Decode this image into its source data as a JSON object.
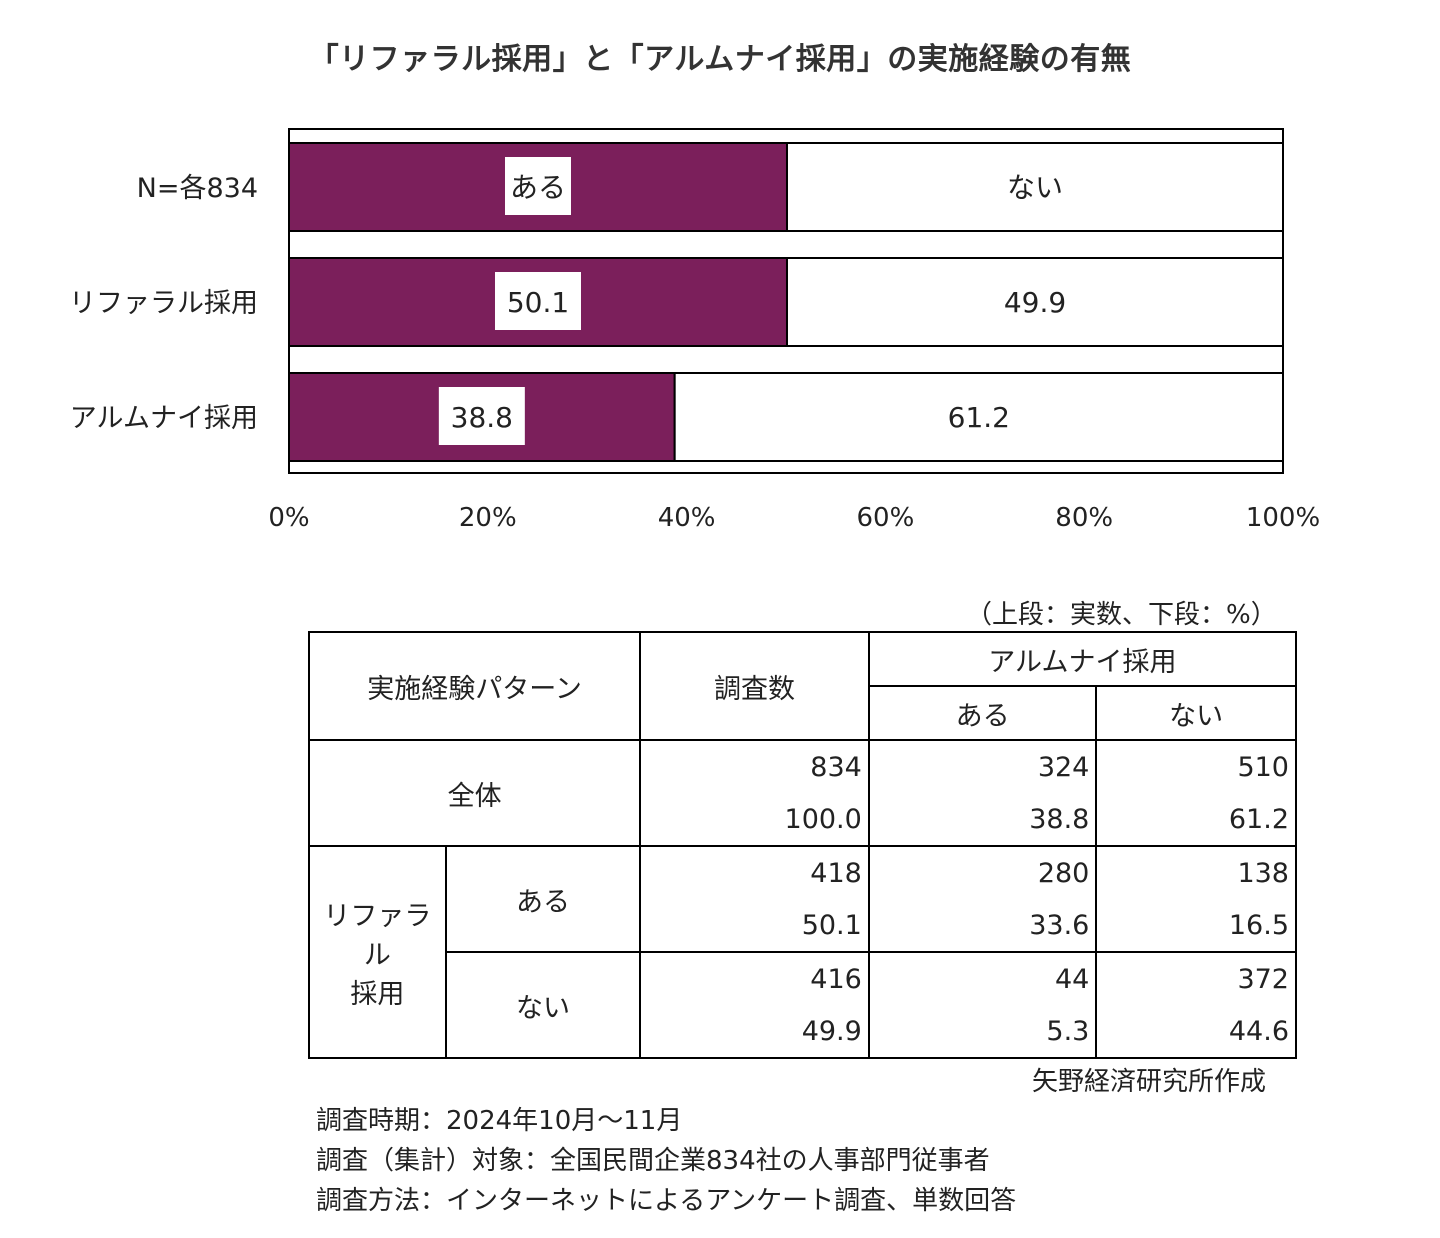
{
  "page_title": "「リファラル採用」と「アルムナイ採用」の実施経験の有無",
  "chart_data": {
    "type": "bar",
    "orientation": "horizontal",
    "stacked": "percent",
    "title": "「リファラル採用」と「アルムナイ採用」の実施経験の有無",
    "categories": [
      "リファラル採用",
      "アルムナイ採用"
    ],
    "legend_row_label": "N=各834",
    "series": [
      {
        "name": "ある",
        "values": [
          50.1,
          38.8
        ],
        "color": "#7b1f5b"
      },
      {
        "name": "ない",
        "values": [
          49.9,
          61.2
        ],
        "color": "#ffffff"
      }
    ],
    "xlim": [
      0,
      100
    ],
    "x_ticks": [
      "0%",
      "20%",
      "40%",
      "60%",
      "80%",
      "100%"
    ],
    "data_labels": [
      [
        "50.1",
        "49.9"
      ],
      [
        "38.8",
        "61.2"
      ]
    ]
  },
  "table": {
    "unit_note": "（上段：実数、下段：%）",
    "header_pattern": "実施経験パターン",
    "header_count": "調査数",
    "header_group": "アルムナイ採用",
    "header_yes": "ある",
    "header_no": "ない",
    "total_label": "全体",
    "referral_label_1": "リファラル",
    "referral_label_2": "採用",
    "row_yes_label": "ある",
    "row_no_label": "ない",
    "rows": [
      {
        "count": "834",
        "count_pct": "100.0",
        "yes": "324",
        "yes_pct": "38.8",
        "no": "510",
        "no_pct": "61.2"
      },
      {
        "count": "418",
        "count_pct": "50.1",
        "yes": "280",
        "yes_pct": "33.6",
        "no": "138",
        "no_pct": "16.5"
      },
      {
        "count": "416",
        "count_pct": "49.9",
        "yes": "44",
        "yes_pct": "5.3",
        "no": "372",
        "no_pct": "44.6"
      }
    ],
    "source": "矢野経済研究所作成"
  },
  "footer": {
    "line1": "調査時期：2024年10月～11月",
    "line2": "調査（集計）対象：全国民間企業834社の人事部門従事者",
    "line3": "調査方法：インターネットによるアンケート調査、単数回答"
  }
}
